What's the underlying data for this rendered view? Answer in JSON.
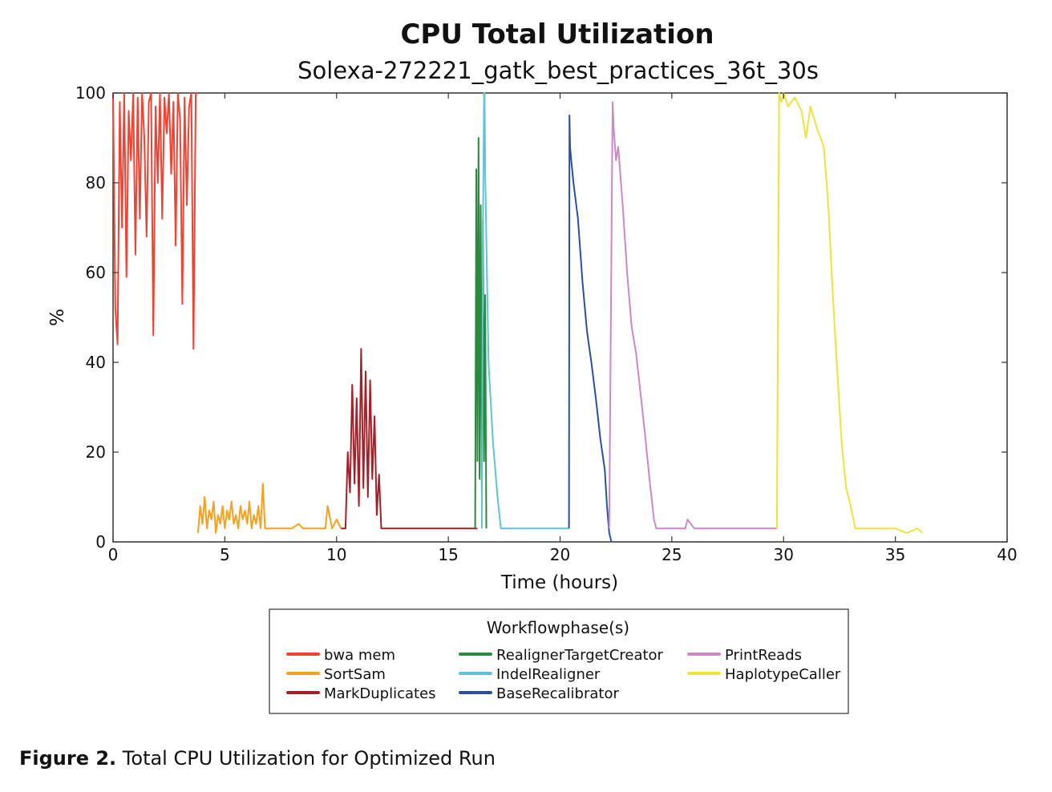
{
  "figure_caption": {
    "label": "Figure 2.",
    "text": " Total CPU Utilization for Optimized Run"
  },
  "chart_data": {
    "type": "line",
    "title": "CPU Total Utilization",
    "subtitle": "Solexa-272221_gatk_best_practices_36t_30s",
    "xlabel": "Time (hours)",
    "ylabel": "%",
    "xlim": [
      0,
      40
    ],
    "ylim": [
      0,
      100
    ],
    "xticks": [
      0,
      5,
      10,
      15,
      20,
      25,
      30,
      35,
      40
    ],
    "yticks": [
      0,
      20,
      40,
      60,
      80,
      100
    ],
    "grid": false,
    "legend": {
      "title": "Workflowphase(s)",
      "placement": "bottom-center",
      "columns": 3
    },
    "series": [
      {
        "name": "bwa mem",
        "color": "#ee4433",
        "x": [
          0,
          0.1,
          0.2,
          0.3,
          0.4,
          0.5,
          0.6,
          0.7,
          0.8,
          0.9,
          1,
          1.1,
          1.2,
          1.3,
          1.4,
          1.5,
          1.6,
          1.7,
          1.8,
          1.9,
          2,
          2.1,
          2.2,
          2.3,
          2.4,
          2.5,
          2.6,
          2.7,
          2.8,
          2.9,
          3,
          3.1,
          3.2,
          3.3,
          3.4,
          3.5,
          3.6,
          3.7,
          3.8
        ],
        "y": [
          100,
          52,
          44,
          98,
          70,
          100,
          59,
          96,
          85,
          100,
          64,
          99,
          72,
          100,
          90,
          68,
          98,
          100,
          46,
          97,
          80,
          100,
          72,
          99,
          91,
          100,
          82,
          98,
          66,
          100,
          94,
          53,
          99,
          75,
          97,
          100,
          43,
          100,
          100
        ]
      },
      {
        "name": "SortSam",
        "color": "#f5a11e",
        "x": [
          3.8,
          3.9,
          4,
          4.1,
          4.2,
          4.3,
          4.4,
          4.5,
          4.6,
          4.7,
          4.8,
          4.9,
          5,
          5.1,
          5.2,
          5.3,
          5.4,
          5.5,
          5.6,
          5.7,
          5.8,
          5.9,
          6,
          6.1,
          6.2,
          6.3,
          6.4,
          6.5,
          6.6,
          6.7,
          6.8,
          6.9,
          7,
          7.5,
          8,
          8.3,
          8.5,
          9,
          9.5,
          9.6,
          9.8,
          10,
          10.2
        ],
        "y": [
          2,
          8,
          4,
          10,
          3,
          7,
          5,
          9,
          2,
          6,
          4,
          8,
          3,
          7,
          5,
          9,
          4,
          6,
          3,
          8,
          5,
          7,
          4,
          9,
          3,
          6,
          4,
          8,
          3,
          13,
          3,
          3,
          3,
          3,
          3,
          4,
          3,
          3,
          3,
          8,
          3,
          5,
          3
        ]
      },
      {
        "name": "MarkDuplicates",
        "color": "#a52028",
        "x": [
          10.2,
          10.4,
          10.5,
          10.6,
          10.7,
          10.8,
          10.9,
          11,
          11.1,
          11.2,
          11.3,
          11.4,
          11.5,
          11.6,
          11.7,
          11.8,
          11.9,
          12,
          13,
          14,
          15,
          16.3
        ],
        "y": [
          3,
          3,
          20,
          11,
          35,
          13,
          32,
          8,
          43,
          12,
          38,
          10,
          36,
          14,
          28,
          6,
          15,
          3,
          3,
          3,
          3,
          3
        ]
      },
      {
        "name": "RealignerTargetCreator",
        "color": "#2a8a3e",
        "x": [
          16.2,
          16.25,
          16.3,
          16.35,
          16.4,
          16.45,
          16.5,
          16.55,
          16.6,
          16.65,
          16.7
        ],
        "y": [
          3,
          83,
          18,
          90,
          14,
          75,
          11,
          72,
          18,
          55,
          3
        ]
      },
      {
        "name": "IndelRealigner",
        "color": "#5ec4d6",
        "x": [
          16.5,
          16.55,
          16.6,
          16.62,
          16.65,
          16.8,
          17,
          17.2,
          17.35,
          17.5,
          18,
          19,
          20,
          20.4
        ],
        "y": [
          3,
          70,
          100,
          100,
          82,
          40,
          22,
          10,
          3,
          3,
          3,
          3,
          3,
          3
        ]
      },
      {
        "name": "BaseRecalibrator",
        "color": "#2c4f9e",
        "x": [
          20.4,
          20.42,
          20.45,
          20.5,
          20.6,
          20.8,
          21,
          21.2,
          21.4,
          21.6,
          21.8,
          22,
          22.1,
          22.2,
          22.3
        ],
        "y": [
          3,
          95,
          88,
          85,
          80,
          72,
          58,
          47,
          40,
          32,
          23,
          16,
          8,
          2,
          0
        ]
      },
      {
        "name": "PrintReads",
        "color": "#cc88c8",
        "x": [
          22.2,
          22.35,
          22.4,
          22.5,
          22.6,
          22.8,
          23,
          23.2,
          23.4,
          23.6,
          23.8,
          24,
          24.2,
          24.3,
          25,
          25.6,
          25.7,
          26,
          27,
          28,
          29,
          29.7
        ],
        "y": [
          3,
          98,
          92,
          85,
          88,
          75,
          60,
          48,
          42,
          33,
          24,
          14,
          5,
          3,
          3,
          3,
          5,
          3,
          3,
          3,
          3,
          3
        ]
      },
      {
        "name": "HaplotypeCaller",
        "color": "#eee33b",
        "x": [
          29.7,
          29.8,
          29.9,
          30,
          30.2,
          30.5,
          30.8,
          31,
          31.2,
          31.5,
          31.8,
          32,
          32.2,
          32.4,
          32.6,
          32.8,
          33,
          33.2,
          33.5,
          34,
          34.5,
          35,
          35.5,
          36,
          36.2
        ],
        "y": [
          3,
          100,
          98,
          100,
          97,
          99,
          96,
          90,
          97,
          92,
          88,
          75,
          55,
          38,
          22,
          12,
          8,
          3,
          3,
          3,
          3,
          3,
          2,
          3,
          2
        ]
      }
    ]
  }
}
